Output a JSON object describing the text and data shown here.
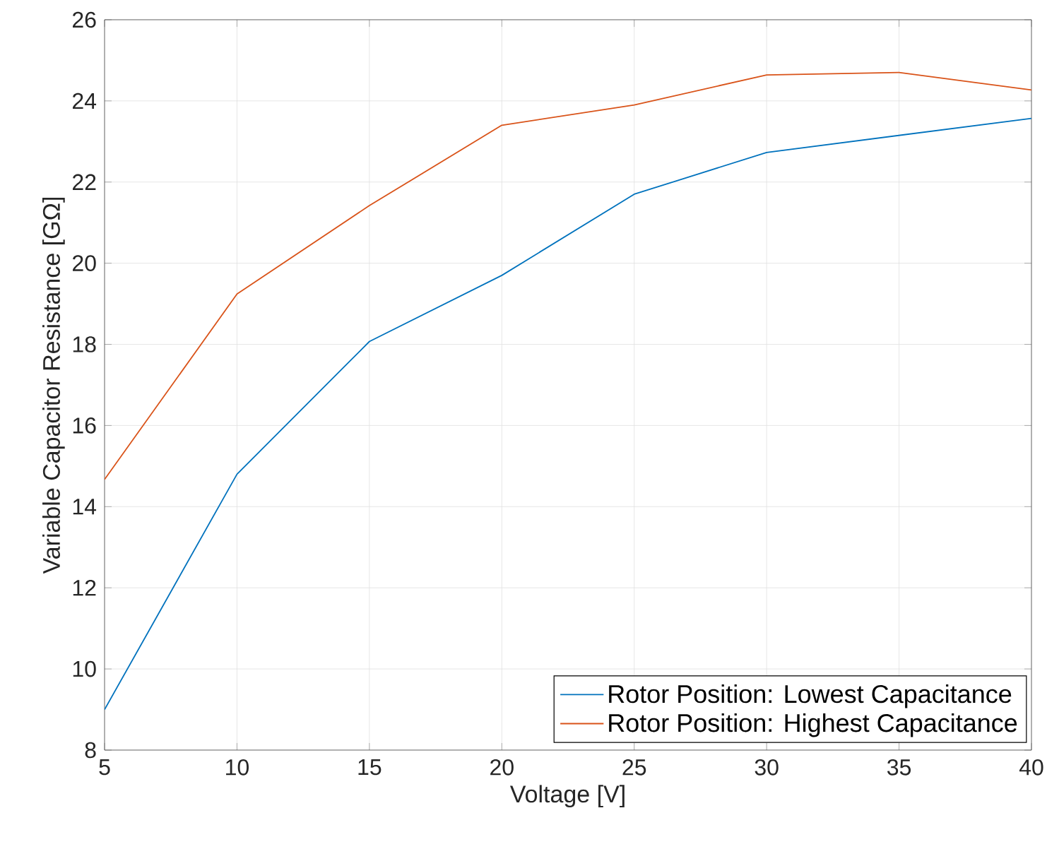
{
  "chart_data": {
    "type": "line",
    "xlabel": "Voltage [V]",
    "ylabel": "Variable Capacitor Resistance [GΩ]",
    "x": [
      5,
      10,
      15,
      20,
      25,
      30,
      35,
      40
    ],
    "series": [
      {
        "name": "Rotor Position: Lowest Capacitance",
        "color": "#0072bd",
        "values": [
          9.0,
          14.8,
          18.07,
          19.7,
          21.7,
          22.73,
          23.15,
          23.57
        ]
      },
      {
        "name": "Rotor Position: Highest Capacitance",
        "color": "#d95319",
        "values": [
          14.67,
          19.24,
          21.42,
          23.4,
          23.9,
          24.64,
          24.7,
          24.27
        ]
      }
    ],
    "xlim": [
      5,
      40
    ],
    "ylim": [
      8,
      26
    ],
    "xticks": [
      5,
      10,
      15,
      20,
      25,
      30,
      35,
      40
    ],
    "yticks": [
      8,
      10,
      12,
      14,
      16,
      18,
      20,
      22,
      24,
      26
    ],
    "grid": true,
    "legend": "bottom right",
    "marker": "none",
    "line_style": "solid"
  }
}
